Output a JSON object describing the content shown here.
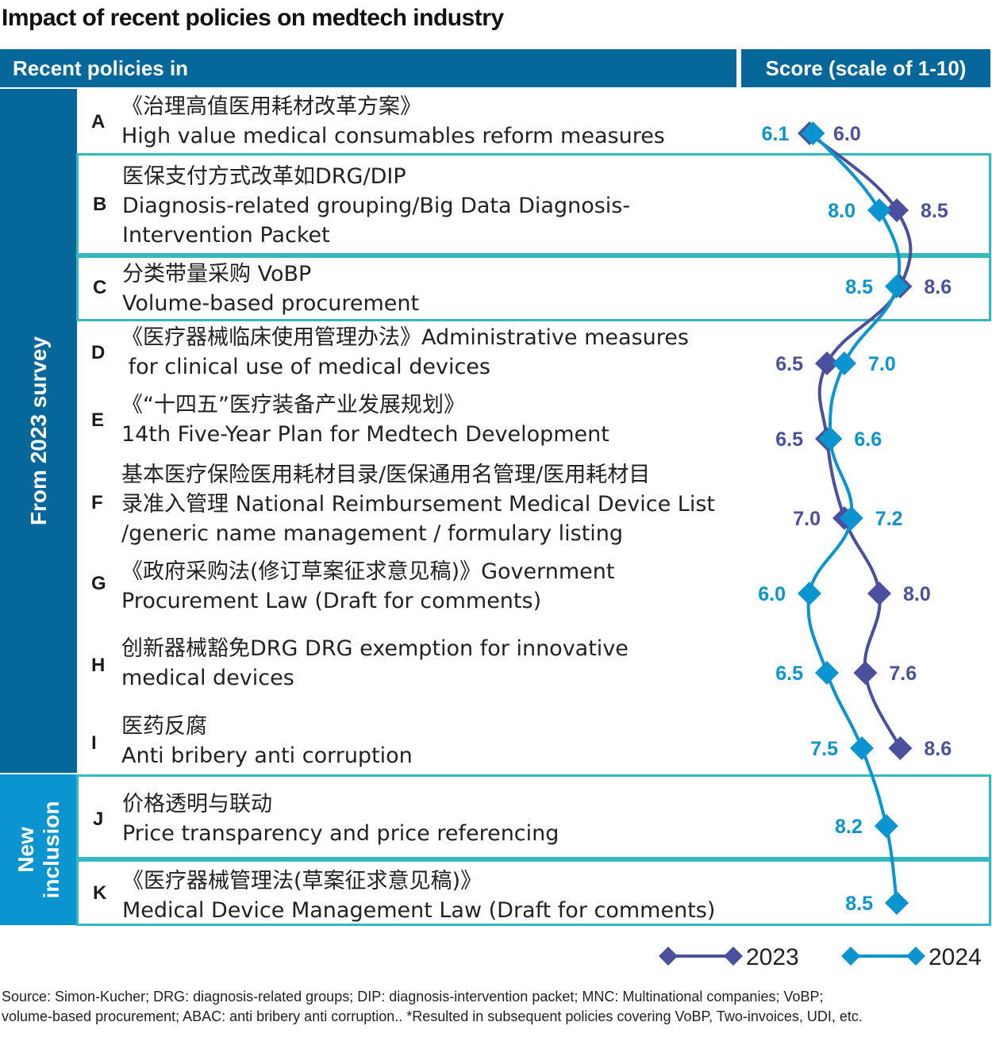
{
  "title": "Impact of recent policies on medtech industry",
  "header": {
    "left": "Recent policies in",
    "right": "Score (scale of 1-10)"
  },
  "groups": {
    "survey": "From 2023 survey",
    "new_line1": "New",
    "new_line2": "inclusion"
  },
  "rows": [
    {
      "letter": "A",
      "lines": [
        "《治理高值医用耗材改革方案》",
        "High value medical consumables reform measures"
      ]
    },
    {
      "letter": "B",
      "lines": [
        "医保支付方式改革如DRG/DIP",
        "Diagnosis-related grouping/Big Data Diagnosis-",
        "Intervention Packet"
      ]
    },
    {
      "letter": "C",
      "lines": [
        "分类带量采购 VoBP",
        "Volume-based procurement"
      ]
    },
    {
      "letter": "D",
      "lines": [
        "《医疗器械临床使用管理办法》Administrative measures",
        " for clinical use of medical devices"
      ]
    },
    {
      "letter": "E",
      "lines": [
        "《“十四五”医疗装备产业发展规划》",
        "14th Five-Year Plan for Medtech Development"
      ]
    },
    {
      "letter": "F",
      "lines": [
        "基本医疗保险医用耗材目录/医保通用名管理/医用耗材目",
        "录准入管理 National Reimbursement Medical Device List",
        "/generic name management / formulary listing"
      ]
    },
    {
      "letter": "G",
      "lines": [
        "《政府采购法(修订草案征求意见稿)》Government",
        "Procurement Law (Draft for comments)"
      ]
    },
    {
      "letter": "H",
      "lines": [
        "创新器械豁免DRG DRG exemption for innovative",
        "medical devices"
      ]
    },
    {
      "letter": "I",
      "lines": [
        "医药反腐",
        "Anti bribery anti corruption"
      ]
    },
    {
      "letter": "J",
      "lines": [
        "价格透明与联动",
        "Price transparency and price referencing"
      ]
    },
    {
      "letter": "K",
      "lines": [
        "《医疗器械管理法(草案征求意见稿)》",
        "Medical Device Management Law (Draft for comments)"
      ]
    }
  ],
  "chart_data": {
    "type": "line",
    "categories": [
      "A",
      "B",
      "C",
      "D",
      "E",
      "F",
      "G",
      "H",
      "I",
      "J",
      "K"
    ],
    "series": [
      {
        "name": "2023",
        "color": "#4a4f9e",
        "values": [
          6.0,
          8.5,
          8.6,
          6.5,
          6.5,
          7.0,
          8.0,
          7.6,
          8.6,
          null,
          null
        ],
        "labels": [
          "6.0",
          "8.5",
          "8.6",
          "6.5",
          "6.5",
          "7.0",
          "8.0",
          "7.6",
          "8.6",
          "",
          ""
        ]
      },
      {
        "name": "2024",
        "color": "#0a95d0",
        "values": [
          6.1,
          8.0,
          8.5,
          7.0,
          6.6,
          7.2,
          6.0,
          6.5,
          7.5,
          8.2,
          8.5
        ],
        "labels": [
          "6.1",
          "8.0",
          "8.5",
          "7.0",
          "6.6",
          "7.2",
          "6.0",
          "6.5",
          "7.5",
          "8.2",
          "8.5"
        ]
      }
    ],
    "orientation": "horizontal-values",
    "legend": "bottom-right"
  },
  "footnote": {
    "line1": "Source: Simon-Kucher; DRG: diagnosis-related groups; DIP: diagnosis-intervention packet; MNC: Multinational companies; VoBP;",
    "line2": "volume-based procurement; ABAC: anti bribery anti corruption.. *Resulted in subsequent policies covering VoBP, Two-invoices, UDI, etc."
  }
}
